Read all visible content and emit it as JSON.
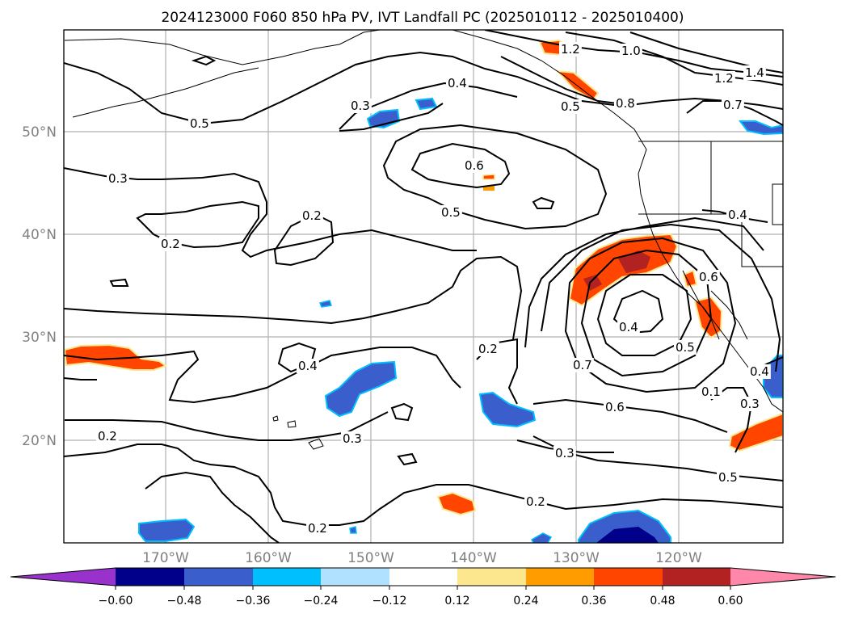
{
  "title": "2024123000 F060 850 hPa PV, IVT Landfall PC (2025010112 - 2025010400)",
  "colors": {
    "coast": "#000000",
    "grid": "#b0b0b0",
    "contour": "#000000",
    "fill_pos_1": "#fde78e",
    "fill_pos_2": "#ff9d00",
    "fill_pos_3": "#ff4500",
    "fill_pos_4": "#b22222",
    "fill_neg_1": "#00bfff",
    "fill_neg_2": "#3a5fcd",
    "fill_neg_3": "#00008b"
  },
  "map": {
    "lat_labels": [
      "50°N",
      "40°N",
      "30°N",
      "20°N"
    ],
    "lon_labels": [
      "170°W",
      "160°W",
      "150°W",
      "140°W",
      "130°W",
      "120°W"
    ],
    "contour_labels": [
      "0.5",
      "0.4",
      "0.3",
      "0.6",
      "0.5",
      "0.3",
      "0.2",
      "0.2",
      "1.0",
      "1.2",
      "1.4",
      "1.2",
      "0.8",
      "0.7",
      "0.4",
      "0.4",
      "0.6",
      "0.5",
      "0.4",
      "0.7",
      "0.5",
      "0.2",
      "0.4",
      "0.3",
      "0.2",
      "0.6",
      "0.3",
      "0.2",
      "0.2",
      "0.5",
      "0.1",
      "0.3"
    ]
  },
  "colorbar": {
    "ticks": [
      "−0.60",
      "−0.48",
      "−0.36",
      "−0.24",
      "−0.12",
      "0.12",
      "0.24",
      "0.36",
      "0.48",
      "0.60"
    ],
    "bins": [
      "#9932cc",
      "#00008b",
      "#3a5fcd",
      "#00bfff",
      "#b0e2ff",
      "#ffffff",
      "#fde78e",
      "#ff9d00",
      "#ff4500",
      "#b22222",
      "#ff88aa"
    ]
  }
}
